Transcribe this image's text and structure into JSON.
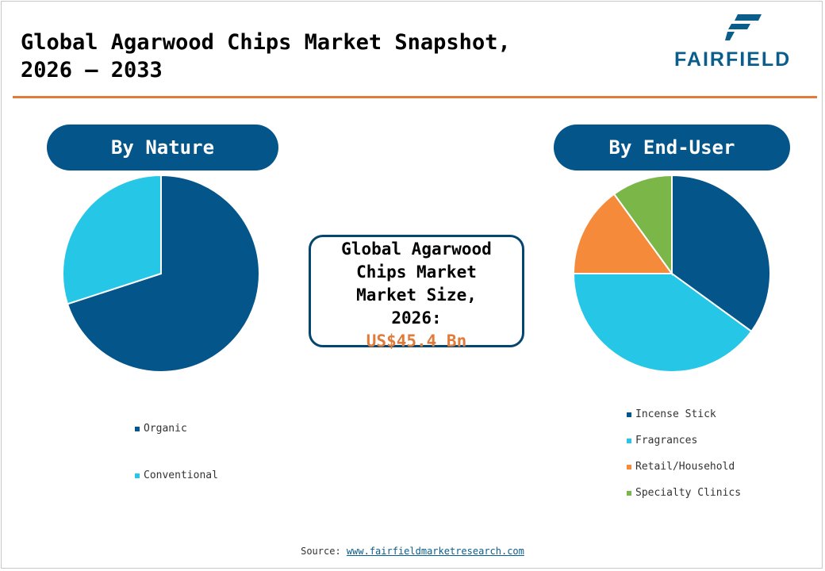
{
  "header": {
    "title_line1": "Global Agarwood Chips Market Snapshot,",
    "title_line2": "2026 – 2033"
  },
  "logo": {
    "text": "FAIRFIELD",
    "color": "#0b5d8c"
  },
  "accent_color": "#e07b39",
  "panels": {
    "nature": {
      "label": "By Nature"
    },
    "enduser": {
      "label": "By End-User"
    }
  },
  "center_box": {
    "line1": "Global Agarwood",
    "line2": "Chips Market",
    "line3": "Market Size,",
    "line4": "2026:",
    "value": "US$45.4 Bn"
  },
  "chart_data": [
    {
      "type": "pie",
      "title": "By Nature",
      "categories": [
        "Organic",
        "Conventional"
      ],
      "values": [
        70,
        30
      ],
      "colors": [
        "#04558a",
        "#26c6e6"
      ],
      "legend_position": "bottom"
    },
    {
      "type": "pie",
      "title": "By End-User",
      "categories": [
        "Incense Stick",
        "Fragrances",
        "Retail/Household",
        "Specialty Clinics"
      ],
      "values": [
        35,
        40,
        15,
        10
      ],
      "colors": [
        "#04558a",
        "#26c6e6",
        "#f58a3a",
        "#7ab648"
      ],
      "legend_position": "bottom"
    }
  ],
  "source": {
    "label": "Source:",
    "link": "www.fairfieldmarketresearch.com"
  }
}
